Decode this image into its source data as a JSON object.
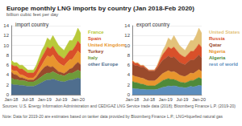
{
  "title": "Europe monthly LNG imports by country (Jan 2018-Feb 2020)",
  "subtitle": "billion cubic feet per day",
  "source": "Sources: U.S. Energy Information Administration and CEDIGAZ LNG Service trade data (2018); Bloomberg Finance L.P. (2019-20)",
  "note": "Note: Data for 2019-20 are estimates based on tanker data provided by Bloomberg Finance L.P.; LNG=liquefied natural gas",
  "chart_data": [
    {
      "type": "area",
      "title": "import country",
      "stacked": true,
      "grid": true,
      "legend": "right",
      "categories": [
        "Jan-18",
        null,
        null,
        null,
        null,
        null,
        "Jul-18",
        null,
        null,
        null,
        null,
        null,
        "Jan-19",
        null,
        null,
        null,
        null,
        null,
        "Jul-19",
        null,
        null,
        null,
        null,
        null,
        "Jan-20",
        null
      ],
      "ylim": [
        0,
        14
      ],
      "yticks": [
        0,
        2,
        4,
        6,
        8,
        10,
        12,
        14
      ],
      "series": [
        {
          "name": "other Europe",
          "color": "#4f6e8e",
          "values": [
            2.2,
            2.0,
            2.0,
            1.9,
            1.9,
            1.8,
            1.7,
            1.7,
            1.7,
            1.9,
            2.2,
            2.5,
            2.8,
            3.0,
            3.0,
            3.2,
            3.0,
            2.8,
            2.7,
            2.6,
            2.8,
            3.0,
            3.0,
            3.2,
            3.4,
            3.2
          ]
        },
        {
          "name": "Italy",
          "color": "#6f9a3a",
          "values": [
            1.2,
            1.1,
            1.1,
            1.0,
            1.0,
            1.0,
            0.9,
            0.9,
            0.9,
            1.0,
            1.1,
            1.2,
            1.3,
            1.4,
            1.4,
            1.5,
            1.4,
            1.3,
            1.3,
            1.2,
            1.3,
            1.4,
            1.4,
            1.5,
            1.6,
            1.5
          ]
        },
        {
          "name": "Turkey",
          "color": "#9a4a2c",
          "values": [
            1.2,
            1.0,
            0.9,
            0.6,
            0.5,
            0.4,
            0.4,
            0.4,
            0.4,
            0.6,
            1.0,
            1.3,
            1.5,
            1.5,
            1.2,
            1.0,
            0.8,
            0.6,
            0.5,
            0.5,
            0.6,
            0.8,
            1.0,
            1.4,
            1.6,
            1.4
          ]
        },
        {
          "name": "United Kingdom",
          "color": "#e8952e",
          "values": [
            0.5,
            0.7,
            0.8,
            0.6,
            0.6,
            0.5,
            0.4,
            0.4,
            0.4,
            0.5,
            0.8,
            1.0,
            1.4,
            2.0,
            2.0,
            2.4,
            2.0,
            1.8,
            1.6,
            1.5,
            1.8,
            1.9,
            1.8,
            1.9,
            2.3,
            2.2
          ]
        },
        {
          "name": "Spain",
          "color": "#d9502a",
          "values": [
            1.0,
            1.0,
            1.0,
            1.1,
            1.2,
            1.1,
            1.0,
            1.0,
            1.0,
            1.2,
            1.4,
            1.6,
            1.6,
            1.8,
            1.7,
            1.8,
            1.7,
            1.6,
            1.6,
            1.5,
            1.6,
            1.8,
            1.8,
            1.8,
            2.0,
            1.9
          ]
        },
        {
          "name": "France",
          "color": "#b8c93a",
          "values": [
            0.9,
            0.7,
            0.7,
            0.8,
            0.8,
            0.7,
            0.6,
            0.6,
            0.6,
            0.8,
            1.0,
            1.4,
            1.4,
            1.8,
            1.7,
            2.1,
            2.1,
            1.9,
            1.8,
            1.7,
            1.9,
            2.1,
            2.0,
            2.2,
            2.6,
            2.3
          ]
        }
      ]
    },
    {
      "type": "area",
      "title": "export country",
      "stacked": true,
      "grid": true,
      "legend": "right",
      "categories": [
        "Jan-18",
        null,
        null,
        null,
        null,
        null,
        "Jul-18",
        null,
        null,
        null,
        null,
        null,
        "Jan-19",
        null,
        null,
        null,
        null,
        null,
        "Jul-19",
        null,
        null,
        null,
        null,
        null,
        "Jan-20",
        null
      ],
      "ylim": [
        0,
        14
      ],
      "yticks": [
        0,
        2,
        4,
        6,
        8,
        10,
        12,
        14
      ],
      "series": [
        {
          "name": "rest of world",
          "color": "#5b8dbd",
          "values": [
            1.3,
            1.2,
            1.2,
            1.1,
            1.1,
            1.0,
            1.0,
            1.0,
            1.0,
            1.1,
            1.3,
            1.5,
            1.6,
            1.8,
            1.7,
            1.8,
            1.7,
            1.5,
            1.5,
            1.4,
            1.5,
            1.7,
            1.6,
            1.7,
            1.9,
            1.8
          ]
        },
        {
          "name": "Algeria",
          "color": "#4f8a3a",
          "values": [
            1.4,
            1.3,
            1.2,
            1.1,
            1.0,
            0.9,
            0.8,
            0.8,
            0.8,
            1.0,
            1.2,
            1.4,
            1.5,
            1.5,
            1.4,
            1.3,
            1.2,
            1.1,
            1.0,
            1.0,
            1.1,
            1.2,
            1.3,
            1.5,
            1.6,
            1.4
          ]
        },
        {
          "name": "Nigeria",
          "color": "#e8952e",
          "values": [
            1.3,
            1.2,
            1.2,
            1.2,
            1.2,
            1.1,
            1.0,
            1.0,
            1.0,
            1.1,
            1.3,
            1.4,
            1.5,
            1.6,
            1.5,
            1.6,
            1.5,
            1.4,
            1.3,
            1.3,
            1.4,
            1.5,
            1.4,
            1.5,
            1.6,
            1.5
          ]
        },
        {
          "name": "Qatar",
          "color": "#9a4a2c",
          "values": [
            2.4,
            2.2,
            2.3,
            2.2,
            2.3,
            2.2,
            2.0,
            2.0,
            2.0,
            2.2,
            2.5,
            2.7,
            2.8,
            3.0,
            2.9,
            3.0,
            2.8,
            2.6,
            2.5,
            2.4,
            2.6,
            2.7,
            2.7,
            2.8,
            3.0,
            2.8
          ]
        },
        {
          "name": "Russia",
          "color": "#d9502a",
          "values": [
            0.5,
            0.5,
            0.5,
            0.3,
            0.3,
            0.2,
            0.2,
            0.2,
            0.2,
            0.4,
            0.8,
            1.2,
            1.5,
            1.8,
            1.8,
            2.0,
            1.8,
            1.7,
            1.6,
            1.5,
            1.6,
            1.7,
            1.8,
            2.0,
            2.2,
            2.1
          ]
        },
        {
          "name": "United States",
          "color": "#e3c27a",
          "values": [
            0.1,
            0.1,
            0.1,
            0.1,
            0.1,
            0.1,
            0.0,
            0.0,
            0.0,
            0.2,
            0.4,
            0.8,
            1.1,
            1.8,
            1.7,
            2.3,
            2.0,
            1.7,
            1.6,
            1.4,
            1.8,
            2.2,
            2.2,
            2.5,
            3.2,
            2.9
          ]
        }
      ]
    }
  ]
}
